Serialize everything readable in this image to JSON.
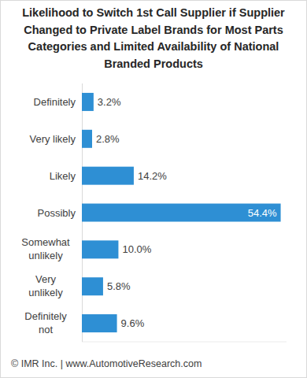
{
  "chart_data": {
    "type": "bar",
    "orientation": "horizontal",
    "title": "Likelihood to Switch 1st Call Supplier if Supplier Changed to Private Label Brands for Most Parts Categories and Limited Availability of National Branded Products",
    "categories": [
      "Definitely",
      "Very likely",
      "Likely",
      "Possibly",
      "Somewhat unlikely",
      "Very unlikely",
      "Definitely not"
    ],
    "values": [
      3.2,
      2.8,
      14.2,
      54.4,
      10.0,
      5.8,
      9.6
    ],
    "value_labels": [
      "3.2%",
      "2.8%",
      "14.2%",
      "54.4%",
      "10.0%",
      "5.8%",
      "9.6%"
    ],
    "color": "#2e8fd4",
    "xlim": [
      0,
      56
    ],
    "data_labels": true,
    "tick_labels": "y",
    "grid": false,
    "source": "© IMR Inc. | www.AutomotiveResearch.com"
  }
}
